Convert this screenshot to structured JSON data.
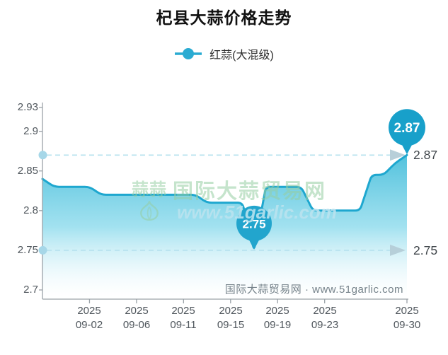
{
  "title": "杞县大蒜价格走势",
  "legend": {
    "label": "红蒜(大混级)",
    "marker_color": "#2aabd2"
  },
  "watermark_center": {
    "logo_text": "蒜蒜",
    "line1": "国际大蒜贸易网",
    "line2": "www.51garlic.com"
  },
  "watermark_bottom": "国际大蒜贸易网 · www.51garlic.com",
  "colors": {
    "line": "#1ea7cf",
    "area_top": "#3fbbd9",
    "area_mid": "#8bdaec",
    "pin": "#18a0ca",
    "dash": "#b5e1ee",
    "dot": "#a6d7e8",
    "arrow": "#b4ccd7",
    "axis": "#9aa2a8",
    "tick_label": "#4f565c"
  },
  "chart_data": {
    "type": "area",
    "title": "杞县大蒜价格走势",
    "series_name": "红蒜(大混级)",
    "x": [
      "2025-08-29",
      "2025-08-30",
      "2025-08-31",
      "2025-09-01",
      "2025-09-02",
      "2025-09-03",
      "2025-09-04",
      "2025-09-05",
      "2025-09-06",
      "2025-09-07",
      "2025-09-09",
      "2025-09-10",
      "2025-09-11",
      "2025-09-12",
      "2025-09-13",
      "2025-09-14",
      "2025-09-15",
      "2025-09-16",
      "2025-09-17",
      "2025-09-18",
      "2025-09-19",
      "2025-09-20",
      "2025-09-21",
      "2025-09-22",
      "2025-09-23",
      "2025-09-24",
      "2025-09-25",
      "2025-09-26",
      "2025-09-27",
      "2025-09-28",
      "2025-09-29",
      "2025-09-30"
    ],
    "values": [
      2.84,
      2.83,
      2.83,
      2.83,
      2.83,
      2.82,
      2.82,
      2.82,
      2.82,
      2.82,
      2.82,
      2.82,
      2.82,
      2.82,
      2.81,
      2.81,
      2.81,
      2.81,
      2.75,
      2.83,
      2.83,
      2.83,
      2.83,
      2.8,
      2.8,
      2.8,
      2.8,
      2.8,
      2.845,
      2.845,
      2.86,
      2.87
    ],
    "ylim": [
      2.7,
      2.93
    ],
    "xlabel": "",
    "ylabel": "",
    "grid": false,
    "legend_position": "top",
    "y_ticks": [
      "2.93",
      "2.9",
      "2.85",
      "2.8",
      "2.75",
      "2.7"
    ],
    "y_tick_values": [
      2.93,
      2.9,
      2.85,
      2.8,
      2.75,
      2.7
    ],
    "x_ticks": [
      {
        "year": "2025",
        "date": "09-02",
        "index": 4
      },
      {
        "year": "2025",
        "date": "09-06",
        "index": 8
      },
      {
        "year": "2025",
        "date": "09-11",
        "index": 12
      },
      {
        "year": "2025",
        "date": "09-15",
        "index": 16
      },
      {
        "year": "2025",
        "date": "09-19",
        "index": 20
      },
      {
        "year": "2025",
        "date": "09-23",
        "index": 24
      },
      {
        "year": "2025",
        "date": "09-30",
        "index": 31
      }
    ],
    "reference_lines": [
      {
        "value": 2.87,
        "label": "2.87"
      },
      {
        "value": 2.75,
        "label": "2.75"
      }
    ],
    "markers": [
      {
        "type": "max",
        "label": "2.87",
        "value": 2.87,
        "date": "2025-09-30"
      },
      {
        "type": "min",
        "label": "2.75",
        "value": 2.75,
        "date": "2025-09-17"
      }
    ]
  }
}
